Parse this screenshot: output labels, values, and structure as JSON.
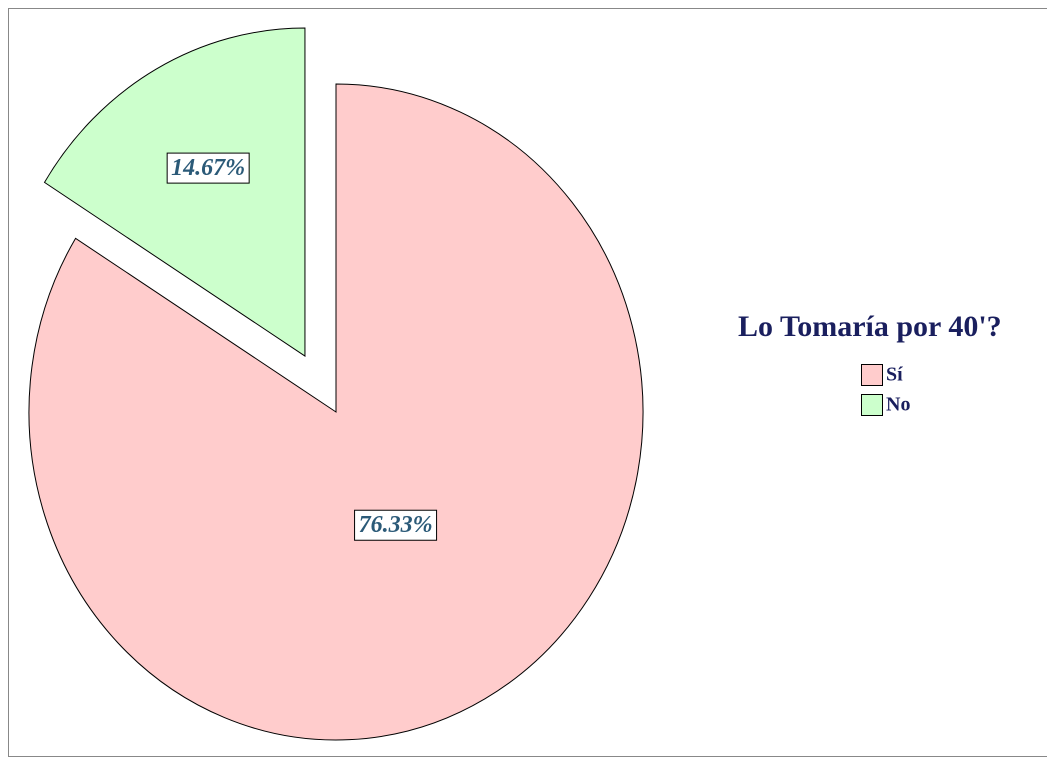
{
  "chart_data": {
    "type": "pie",
    "legend_title": "Lo Tomaría por 40'?",
    "categories": [
      "Sí",
      "No"
    ],
    "values": [
      76.33,
      14.67
    ],
    "value_labels": [
      "76.33%",
      "14.67%"
    ],
    "colors": [
      "#ffcccc",
      "#ccffcc"
    ],
    "explode": [
      false,
      true
    ],
    "legend": "right"
  }
}
